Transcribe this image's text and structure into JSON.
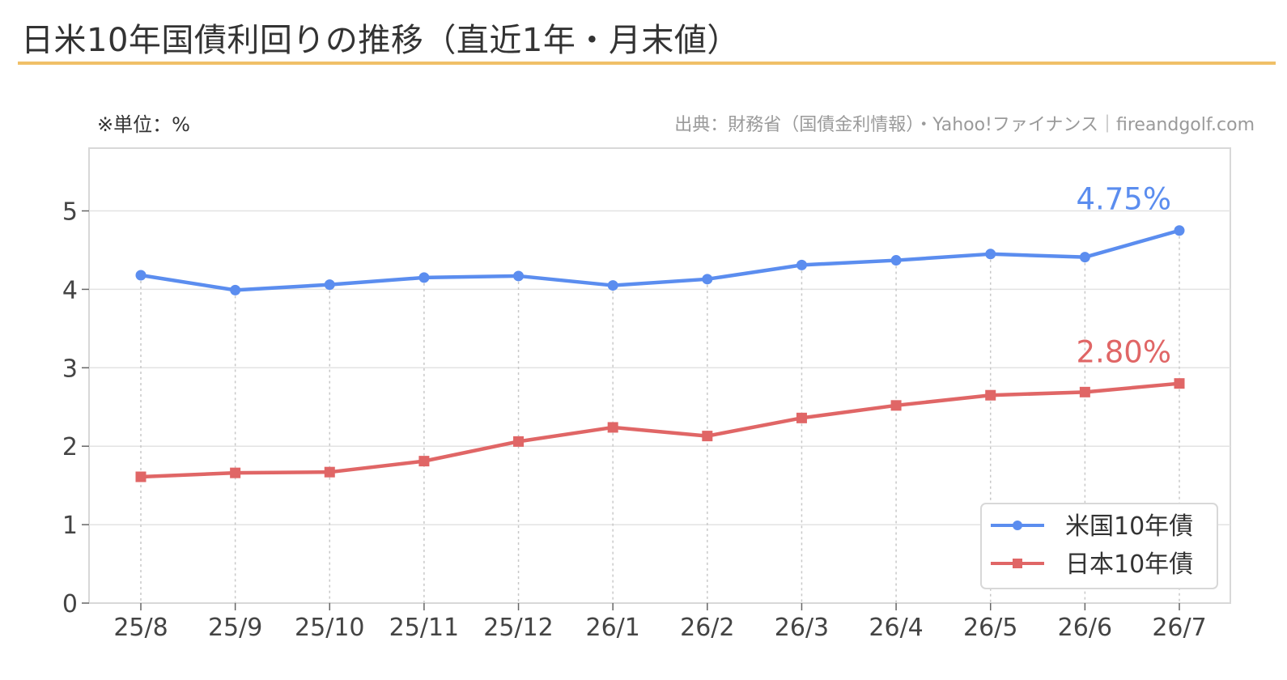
{
  "title": "日米10年国債利回りの推移（直近1年・月末値）",
  "unit_note": "※単位：%",
  "source_note": "出典：財務省（国債金利情報）・Yahoo!ファイナンス｜fireandgolf.com",
  "colors": {
    "us": "#5b8def",
    "jp": "#e06666",
    "accent_rule": "#f0c068",
    "grid": "#e3e3e3",
    "dropline": "#c8c8c8"
  },
  "chart_data": {
    "type": "line",
    "categories": [
      "25/8",
      "25/9",
      "25/10",
      "25/11",
      "25/12",
      "26/1",
      "26/2",
      "26/3",
      "26/4",
      "26/5",
      "26/6",
      "26/7"
    ],
    "series": [
      {
        "name": "米国10年債",
        "marker": "circle",
        "values": [
          4.18,
          3.99,
          4.06,
          4.15,
          4.17,
          4.05,
          4.13,
          4.31,
          4.37,
          4.45,
          4.41,
          4.75
        ],
        "end_label": "4.75%"
      },
      {
        "name": "日本10年債",
        "marker": "square",
        "values": [
          1.61,
          1.66,
          1.67,
          1.81,
          2.06,
          2.24,
          2.13,
          2.36,
          2.52,
          2.65,
          2.69,
          2.8
        ],
        "end_label": "2.80%"
      }
    ],
    "yticks": [
      0,
      1,
      2,
      3,
      4,
      5
    ],
    "ylim": [
      0,
      5.8
    ],
    "xlabel": "",
    "ylabel": "",
    "grid": "horizontal",
    "drop_lines": true,
    "legend": "lower-right"
  }
}
